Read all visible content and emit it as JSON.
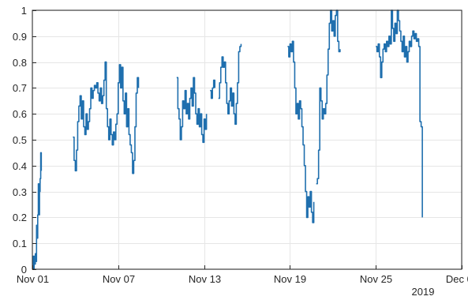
{
  "chart_data": {
    "type": "line",
    "title": "",
    "xlabel": "",
    "ylabel": "",
    "xlim": [
      "2019-11-01",
      "2019-12-01"
    ],
    "ylim": [
      0,
      1
    ],
    "grid": true,
    "x_ticks": [
      "2019-11-01",
      "2019-11-07",
      "2019-11-13",
      "2019-11-19",
      "2019-11-25",
      "2019-12-01"
    ],
    "x_tick_labels": [
      "Nov 01",
      "Nov 07",
      "Nov 13",
      "Nov 19",
      "Nov 25",
      "Dec 01"
    ],
    "x_secondary_label": "2019",
    "y_ticks": [
      0,
      0.1,
      0.2,
      0.3,
      0.4,
      0.5,
      0.6,
      0.7,
      0.8,
      0.9,
      1
    ],
    "y_tick_labels": [
      "0",
      "0.1",
      "0.2",
      "0.3",
      "0.4",
      "0.5",
      "0.6",
      "0.7",
      "0.8",
      "0.9",
      "1"
    ],
    "series_color": "#1f6fae",
    "series": [
      {
        "segments": [
          [
            [
              "2019-11-01 00:00",
              0.0
            ],
            [
              "2019-11-01 01:00",
              0.05
            ],
            [
              "2019-11-01 02:00",
              0.0
            ],
            [
              "2019-11-01 03:00",
              0.05
            ],
            [
              "2019-11-01 04:00",
              0.02
            ],
            [
              "2019-11-01 05:00",
              0.06
            ],
            [
              "2019-11-01 06:00",
              0.03
            ],
            [
              "2019-11-01 07:00",
              0.17
            ],
            [
              "2019-11-01 08:00",
              0.12
            ],
            [
              "2019-11-01 09:00",
              0.21
            ],
            [
              "2019-11-01 10:00",
              0.33
            ],
            [
              "2019-11-01 11:00",
              0.21
            ],
            [
              "2019-11-01 12:00",
              0.3
            ],
            [
              "2019-11-01 13:00",
              0.35
            ],
            [
              "2019-11-01 14:00",
              0.45
            ],
            [
              "2019-11-01 15:00",
              0.38
            ]
          ],
          [
            [
              "2019-11-03 20:00",
              0.51
            ],
            [
              "2019-11-03 22:00",
              0.42
            ],
            [
              "2019-11-04 00:00",
              0.38
            ],
            [
              "2019-11-04 02:00",
              0.46
            ],
            [
              "2019-11-04 04:00",
              0.57
            ],
            [
              "2019-11-04 06:00",
              0.63
            ],
            [
              "2019-11-04 08:00",
              0.67
            ],
            [
              "2019-11-04 10:00",
              0.58
            ],
            [
              "2019-11-04 12:00",
              0.65
            ],
            [
              "2019-11-04 14:00",
              0.55
            ],
            [
              "2019-11-04 16:00",
              0.52
            ],
            [
              "2019-11-04 18:00",
              0.6
            ],
            [
              "2019-11-04 20:00",
              0.54
            ],
            [
              "2019-11-04 22:00",
              0.57
            ],
            [
              "2019-11-05 00:00",
              0.62
            ],
            [
              "2019-11-05 02:00",
              0.7
            ],
            [
              "2019-11-05 04:00",
              0.66
            ],
            [
              "2019-11-05 06:00",
              0.69
            ],
            [
              "2019-11-05 08:00",
              0.71
            ],
            [
              "2019-11-05 10:00",
              0.7
            ],
            [
              "2019-11-05 12:00",
              0.72
            ],
            [
              "2019-11-05 14:00",
              0.68
            ],
            [
              "2019-11-05 16:00",
              0.65
            ],
            [
              "2019-11-05 18:00",
              0.7
            ],
            [
              "2019-11-05 20:00",
              0.64
            ],
            [
              "2019-11-05 22:00",
              0.67
            ],
            [
              "2019-11-06 00:00",
              0.73
            ],
            [
              "2019-11-06 02:00",
              0.8
            ],
            [
              "2019-11-06 04:00",
              0.62
            ],
            [
              "2019-11-06 06:00",
              0.55
            ],
            [
              "2019-11-06 08:00",
              0.5
            ],
            [
              "2019-11-06 10:00",
              0.58
            ],
            [
              "2019-11-06 12:00",
              0.52
            ],
            [
              "2019-11-06 14:00",
              0.48
            ],
            [
              "2019-11-06 16:00",
              0.53
            ],
            [
              "2019-11-06 18:00",
              0.5
            ],
            [
              "2019-11-06 20:00",
              0.56
            ],
            [
              "2019-11-06 22:00",
              0.6
            ],
            [
              "2019-11-07 00:00",
              0.72
            ],
            [
              "2019-11-07 02:00",
              0.79
            ],
            [
              "2019-11-07 04:00",
              0.7
            ],
            [
              "2019-11-07 06:00",
              0.78
            ],
            [
              "2019-11-07 08:00",
              0.65
            ],
            [
              "2019-11-07 10:00",
              0.6
            ],
            [
              "2019-11-07 12:00",
              0.68
            ],
            [
              "2019-11-07 14:00",
              0.55
            ],
            [
              "2019-11-07 16:00",
              0.62
            ],
            [
              "2019-11-07 18:00",
              0.52
            ],
            [
              "2019-11-07 20:00",
              0.48
            ],
            [
              "2019-11-07 22:00",
              0.45
            ],
            [
              "2019-11-08 00:00",
              0.37
            ],
            [
              "2019-11-08 02:00",
              0.42
            ],
            [
              "2019-11-08 04:00",
              0.55
            ],
            [
              "2019-11-08 06:00",
              0.68
            ],
            [
              "2019-11-08 08:00",
              0.74
            ],
            [
              "2019-11-08 10:00",
              0.7
            ]
          ],
          [
            [
              "2019-11-11 02:00",
              0.74
            ],
            [
              "2019-11-11 04:00",
              0.62
            ],
            [
              "2019-11-11 06:00",
              0.58
            ],
            [
              "2019-11-11 08:00",
              0.5
            ],
            [
              "2019-11-11 10:00",
              0.55
            ],
            [
              "2019-11-11 12:00",
              0.65
            ],
            [
              "2019-11-11 14:00",
              0.62
            ],
            [
              "2019-11-11 16:00",
              0.69
            ],
            [
              "2019-11-11 18:00",
              0.6
            ],
            [
              "2019-11-11 20:00",
              0.64
            ],
            [
              "2019-11-11 22:00",
              0.58
            ],
            [
              "2019-11-12 00:00",
              0.66
            ],
            [
              "2019-11-12 02:00",
              0.7
            ],
            [
              "2019-11-12 04:00",
              0.63
            ],
            [
              "2019-11-12 06:00",
              0.74
            ],
            [
              "2019-11-12 08:00",
              0.68
            ],
            [
              "2019-11-12 10:00",
              0.6
            ],
            [
              "2019-11-12 12:00",
              0.56
            ],
            [
              "2019-11-12 14:00",
              0.62
            ],
            [
              "2019-11-12 16:00",
              0.55
            ],
            [
              "2019-11-12 18:00",
              0.6
            ],
            [
              "2019-11-12 20:00",
              0.52
            ],
            [
              "2019-11-12 22:00",
              0.49
            ],
            [
              "2019-11-13 00:00",
              0.58
            ],
            [
              "2019-11-13 02:00",
              0.54
            ],
            [
              "2019-11-13 04:00",
              0.6
            ]
          ],
          [
            [
              "2019-11-13 10:00",
              0.69
            ],
            [
              "2019-11-13 12:00",
              0.66
            ],
            [
              "2019-11-13 14:00",
              0.7
            ],
            [
              "2019-11-13 16:00",
              0.73
            ],
            [
              "2019-11-13 18:00",
              0.7
            ]
          ],
          [
            [
              "2019-11-14 00:00",
              0.66
            ],
            [
              "2019-11-14 02:00",
              0.72
            ],
            [
              "2019-11-14 04:00",
              0.78
            ],
            [
              "2019-11-14 06:00",
              0.82
            ],
            [
              "2019-11-14 08:00",
              0.78
            ],
            [
              "2019-11-14 10:00",
              0.8
            ],
            [
              "2019-11-14 12:00",
              0.72
            ],
            [
              "2019-11-14 14:00",
              0.64
            ],
            [
              "2019-11-14 16:00",
              0.6
            ],
            [
              "2019-11-14 18:00",
              0.65
            ],
            [
              "2019-11-14 20:00",
              0.7
            ],
            [
              "2019-11-14 22:00",
              0.63
            ],
            [
              "2019-11-15 00:00",
              0.68
            ],
            [
              "2019-11-15 02:00",
              0.6
            ],
            [
              "2019-11-15 04:00",
              0.56
            ],
            [
              "2019-11-15 06:00",
              0.64
            ],
            [
              "2019-11-15 08:00",
              0.72
            ],
            [
              "2019-11-15 10:00",
              0.84
            ],
            [
              "2019-11-15 12:00",
              0.86
            ],
            [
              "2019-11-15 14:00",
              0.87
            ]
          ],
          [
            [
              "2019-11-18 20:00",
              0.86
            ],
            [
              "2019-11-18 22:00",
              0.82
            ],
            [
              "2019-11-19 00:00",
              0.87
            ],
            [
              "2019-11-19 02:00",
              0.84
            ],
            [
              "2019-11-19 04:00",
              0.88
            ],
            [
              "2019-11-19 06:00",
              0.8
            ],
            [
              "2019-11-19 08:00",
              0.7
            ],
            [
              "2019-11-19 10:00",
              0.6
            ],
            [
              "2019-11-19 12:00",
              0.64
            ],
            [
              "2019-11-19 14:00",
              0.58
            ],
            [
              "2019-11-19 16:00",
              0.65
            ],
            [
              "2019-11-19 18:00",
              0.62
            ],
            [
              "2019-11-19 20:00",
              0.55
            ],
            [
              "2019-11-19 22:00",
              0.48
            ],
            [
              "2019-11-20 00:00",
              0.4
            ],
            [
              "2019-11-20 02:00",
              0.3
            ],
            [
              "2019-11-20 04:00",
              0.2
            ],
            [
              "2019-11-20 06:00",
              0.28
            ],
            [
              "2019-11-20 08:00",
              0.24
            ],
            [
              "2019-11-20 10:00",
              0.3
            ],
            [
              "2019-11-20 12:00",
              0.22
            ],
            [
              "2019-11-20 14:00",
              0.18
            ],
            [
              "2019-11-20 16:00",
              0.26
            ]
          ],
          [
            [
              "2019-11-20 20:00",
              0.33
            ],
            [
              "2019-11-20 22:00",
              0.35
            ],
            [
              "2019-11-21 00:00",
              0.46
            ],
            [
              "2019-11-21 02:00",
              0.7
            ],
            [
              "2019-11-21 04:00",
              0.65
            ],
            [
              "2019-11-21 06:00",
              0.58
            ],
            [
              "2019-11-21 08:00",
              0.62
            ],
            [
              "2019-11-21 10:00",
              0.6
            ],
            [
              "2019-11-21 12:00",
              0.64
            ],
            [
              "2019-11-21 14:00",
              0.75
            ],
            [
              "2019-11-21 16:00",
              0.85
            ],
            [
              "2019-11-21 18:00",
              0.95
            ],
            [
              "2019-11-21 20:00",
              1.0
            ],
            [
              "2019-11-21 22:00",
              0.92
            ],
            [
              "2019-11-22 00:00",
              0.96
            ],
            [
              "2019-11-22 02:00",
              0.9
            ],
            [
              "2019-11-22 04:00",
              0.98
            ],
            [
              "2019-11-22 06:00",
              1.0
            ],
            [
              "2019-11-22 08:00",
              0.88
            ],
            [
              "2019-11-22 10:00",
              0.84
            ],
            [
              "2019-11-22 12:00",
              0.85
            ]
          ],
          [
            [
              "2019-11-25 00:00",
              0.86
            ],
            [
              "2019-11-25 02:00",
              0.84
            ],
            [
              "2019-11-25 04:00",
              0.87
            ],
            [
              "2019-11-25 06:00",
              0.82
            ],
            [
              "2019-11-25 08:00",
              0.74
            ],
            [
              "2019-11-25 10:00",
              0.8
            ],
            [
              "2019-11-25 12:00",
              0.85
            ],
            [
              "2019-11-25 14:00",
              0.87
            ],
            [
              "2019-11-25 16:00",
              0.84
            ],
            [
              "2019-11-25 18:00",
              0.88
            ],
            [
              "2019-11-25 20:00",
              0.86
            ],
            [
              "2019-11-25 22:00",
              0.9
            ],
            [
              "2019-11-26 00:00",
              0.87
            ],
            [
              "2019-11-26 02:00",
              1.0
            ],
            [
              "2019-11-26 04:00",
              0.93
            ],
            [
              "2019-11-26 06:00",
              0.88
            ],
            [
              "2019-11-26 08:00",
              0.95
            ],
            [
              "2019-11-26 10:00",
              0.91
            ],
            [
              "2019-11-26 12:00",
              1.0
            ],
            [
              "2019-11-26 14:00",
              0.96
            ],
            [
              "2019-11-26 16:00",
              0.92
            ],
            [
              "2019-11-26 18:00",
              0.88
            ],
            [
              "2019-11-26 20:00",
              0.84
            ],
            [
              "2019-11-26 22:00",
              0.9
            ],
            [
              "2019-11-27 00:00",
              0.82
            ],
            [
              "2019-11-27 02:00",
              0.86
            ],
            [
              "2019-11-27 04:00",
              0.8
            ],
            [
              "2019-11-27 06:00",
              0.84
            ],
            [
              "2019-11-27 08:00",
              0.88
            ],
            [
              "2019-11-27 10:00",
              0.86
            ],
            [
              "2019-11-27 12:00",
              0.9
            ],
            [
              "2019-11-27 14:00",
              0.92
            ],
            [
              "2019-11-27 16:00",
              0.89
            ],
            [
              "2019-11-27 18:00",
              0.91
            ],
            [
              "2019-11-27 20:00",
              0.88
            ],
            [
              "2019-11-27 22:00",
              0.89
            ],
            [
              "2019-11-28 00:00",
              0.86
            ],
            [
              "2019-11-28 02:00",
              0.57
            ],
            [
              "2019-11-28 04:00",
              0.55
            ],
            [
              "2019-11-28 06:00",
              0.2
            ]
          ]
        ]
      }
    ]
  }
}
